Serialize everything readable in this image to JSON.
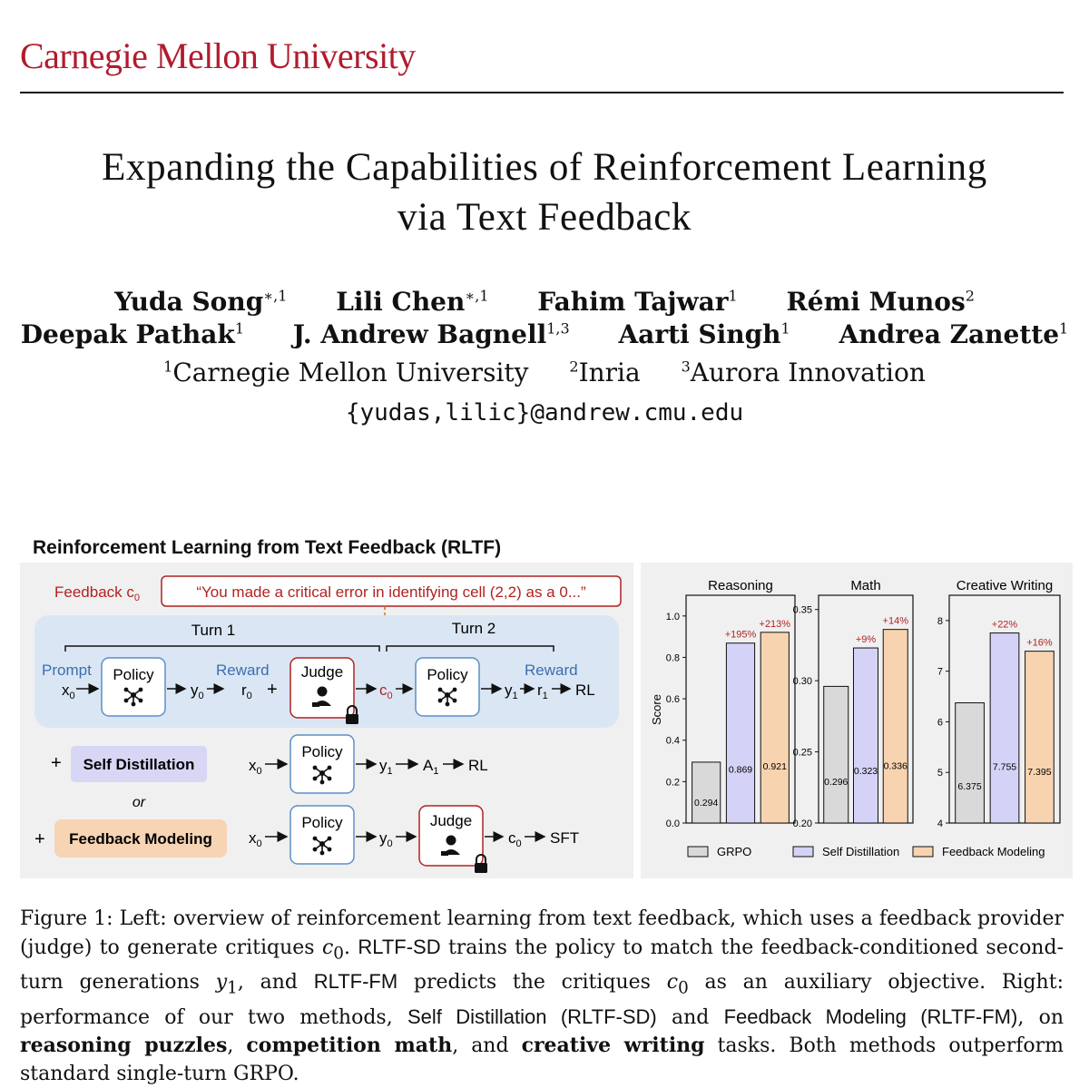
{
  "header": {
    "institution": "Carnegie Mellon University"
  },
  "paper": {
    "title_line1": "Expanding the Capabilities of Reinforcement Learning",
    "title_line2": "via Text Feedback",
    "authors_line1": [
      {
        "name": "Yuda Song",
        "sup": "∗,1"
      },
      {
        "name": "Lili Chen",
        "sup": "∗,1"
      },
      {
        "name": "Fahim Tajwar",
        "sup": "1"
      },
      {
        "name": "Rémi Munos",
        "sup": "2"
      }
    ],
    "authors_line2": [
      {
        "name": "Deepak Pathak",
        "sup": "1"
      },
      {
        "name": "J. Andrew Bagnell",
        "sup": "1,3"
      },
      {
        "name": "Aarti Singh",
        "sup": "1"
      },
      {
        "name": "Andrea Zanette",
        "sup": "1"
      }
    ],
    "affiliations": [
      {
        "sup": "1",
        "name": "Carnegie Mellon University"
      },
      {
        "sup": "2",
        "name": "Inria"
      },
      {
        "sup": "3",
        "name": "Aurora Innovation"
      }
    ],
    "email": "{yudas,lilic}@andrew.cmu.edu"
  },
  "diagram": {
    "title": "Reinforcement Learning from Text Feedback (RLTF)",
    "feedback_label": "Feedback c",
    "feedback_sub": "0",
    "feedback_quote": "“You made a critical error in identifying cell (2,2) as a 0...”",
    "turn1": "Turn 1",
    "turn2": "Turn 2",
    "prompt": "Prompt",
    "reward": "Reward",
    "policy": "Policy",
    "judge": "Judge",
    "rl": "RL",
    "self_distillation": "Self Distillation",
    "feedback_modeling": "Feedback Modeling",
    "or": "or",
    "plus": "+",
    "sft": "SFT",
    "x": "x",
    "y": "y",
    "r": "r",
    "c": "c",
    "A": "A",
    "sub0": "0",
    "sub1": "1",
    "colors": {
      "blue_panel": "#dbe6f4",
      "red": "#b22222",
      "sd_fill": "#d8d6f5",
      "fm_fill": "#f6d4b4",
      "link_blue": "#3a6fb0"
    }
  },
  "chart_data": [
    {
      "type": "bar",
      "title": "Reasoning",
      "ylabel": "Score",
      "ylim": [
        0.0,
        1.1
      ],
      "yticks": [
        "0.0",
        "0.2",
        "0.4",
        "0.6",
        "0.8",
        "1.0"
      ],
      "categories": [
        "GRPO",
        "Self Distillation",
        "Feedback Modeling"
      ],
      "values": [
        0.294,
        0.869,
        0.921
      ],
      "value_labels": [
        "0.294",
        "0.869",
        "0.921"
      ],
      "gains": [
        "",
        "+195%",
        "+213%"
      ]
    },
    {
      "type": "bar",
      "title": "Math",
      "ylim": [
        0.2,
        0.36
      ],
      "yticks": [
        "0.20",
        "0.25",
        "0.30",
        "0.35"
      ],
      "categories": [
        "GRPO",
        "Self Distillation",
        "Feedback Modeling"
      ],
      "values": [
        0.296,
        0.323,
        0.336
      ],
      "value_labels": [
        "0.296",
        "0.323",
        "0.336"
      ],
      "gains": [
        "",
        "+9%",
        "+14%"
      ]
    },
    {
      "type": "bar",
      "title": "Creative Writing",
      "ylim": [
        4,
        8.5
      ],
      "yticks": [
        "4",
        "5",
        "6",
        "7",
        "8"
      ],
      "categories": [
        "GRPO",
        "Self Distillation",
        "Feedback Modeling"
      ],
      "values": [
        6.375,
        7.755,
        7.395
      ],
      "value_labels": [
        "6.375",
        "7.755",
        "7.395"
      ],
      "gains": [
        "",
        "+22%",
        "+16%"
      ]
    }
  ],
  "legend": [
    {
      "label": "GRPO",
      "color": "#d9d9d9"
    },
    {
      "label": "Self Distillation",
      "color": "#d4d2f6"
    },
    {
      "label": "Feedback Modeling",
      "color": "#f7d3b0"
    }
  ],
  "caption": {
    "p1": "Figure 1: Left: overview of reinforcement learning from text feedback, which uses a feedback provider (judge) to generate critiques ",
    "c0a": "c",
    "sub0a": "0",
    "p2": ". ",
    "sd_abbr": "RLTF-SD",
    "p3": " trains the policy to match the feedback-conditioned second-turn generations ",
    "y1": "y",
    "sub1": "1",
    "p4": ", and ",
    "fm_abbr": "RLTF-FM",
    "p5": " predicts the critiques ",
    "c0b": "c",
    "sub0b": "0",
    "p6": " as an auxiliary objective. Right: performance of our two methods, ",
    "sd_full": "Self Distillation (RLTF-SD)",
    "p7": " and ",
    "fm_full": "Feedback Modeling (RLTF-FM)",
    "p8": ", on ",
    "b1": "reasoning puzzles",
    "p9": ", ",
    "b2": "competition math",
    "p10": ", and ",
    "b3": "creative writing",
    "p11": " tasks. Both methods outperform standard single-turn GRPO."
  }
}
